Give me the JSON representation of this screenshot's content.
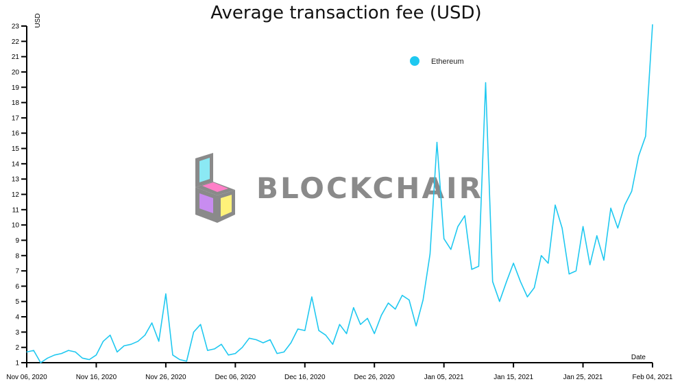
{
  "chart_data": {
    "type": "line",
    "title": "Average transaction fee (USD)",
    "ylabel": "USD",
    "xlabel": "Date",
    "ylim": [
      1,
      23
    ],
    "y_ticks": [
      1,
      2,
      3,
      4,
      5,
      6,
      7,
      8,
      9,
      10,
      11,
      12,
      13,
      14,
      15,
      16,
      17,
      18,
      19,
      20,
      21,
      22,
      23
    ],
    "x_range": [
      "2020-11-06",
      "2021-02-04"
    ],
    "x_ticks": [
      {
        "date": "2020-11-06",
        "label": "Nov 06, 2020"
      },
      {
        "date": "2020-11-16",
        "label": "Nov 16, 2020"
      },
      {
        "date": "2020-11-26",
        "label": "Nov 26, 2020"
      },
      {
        "date": "2020-12-06",
        "label": "Dec 06, 2020"
      },
      {
        "date": "2020-12-16",
        "label": "Dec 16, 2020"
      },
      {
        "date": "2020-12-26",
        "label": "Dec 26, 2020"
      },
      {
        "date": "2021-01-05",
        "label": "Jan 05, 2021"
      },
      {
        "date": "2021-01-15",
        "label": "Jan 15, 2021"
      },
      {
        "date": "2021-01-25",
        "label": "Jan 25, 2021"
      },
      {
        "date": "2021-02-04",
        "label": "Feb 04, 2021"
      }
    ],
    "legend_position": "top-right",
    "grid": false,
    "series": [
      {
        "name": "Ethereum",
        "color": "#1ec8f0",
        "x": [
          "2020-11-06",
          "2020-11-07",
          "2020-11-08",
          "2020-11-09",
          "2020-11-10",
          "2020-11-11",
          "2020-11-12",
          "2020-11-13",
          "2020-11-14",
          "2020-11-15",
          "2020-11-16",
          "2020-11-17",
          "2020-11-18",
          "2020-11-19",
          "2020-11-20",
          "2020-11-21",
          "2020-11-22",
          "2020-11-23",
          "2020-11-24",
          "2020-11-25",
          "2020-11-26",
          "2020-11-27",
          "2020-11-28",
          "2020-11-29",
          "2020-11-30",
          "2020-12-01",
          "2020-12-02",
          "2020-12-03",
          "2020-12-04",
          "2020-12-05",
          "2020-12-06",
          "2020-12-07",
          "2020-12-08",
          "2020-12-09",
          "2020-12-10",
          "2020-12-11",
          "2020-12-12",
          "2020-12-13",
          "2020-12-14",
          "2020-12-15",
          "2020-12-16",
          "2020-12-17",
          "2020-12-18",
          "2020-12-19",
          "2020-12-20",
          "2020-12-21",
          "2020-12-22",
          "2020-12-23",
          "2020-12-24",
          "2020-12-25",
          "2020-12-26",
          "2020-12-27",
          "2020-12-28",
          "2020-12-29",
          "2020-12-30",
          "2020-12-31",
          "2021-01-01",
          "2021-01-02",
          "2021-01-03",
          "2021-01-04",
          "2021-01-05",
          "2021-01-06",
          "2021-01-07",
          "2021-01-08",
          "2021-01-09",
          "2021-01-10",
          "2021-01-11",
          "2021-01-12",
          "2021-01-13",
          "2021-01-14",
          "2021-01-15",
          "2021-01-16",
          "2021-01-17",
          "2021-01-18",
          "2021-01-19",
          "2021-01-20",
          "2021-01-21",
          "2021-01-22",
          "2021-01-23",
          "2021-01-24",
          "2021-01-25",
          "2021-01-26",
          "2021-01-27",
          "2021-01-28",
          "2021-01-29",
          "2021-01-30",
          "2021-01-31",
          "2021-02-01",
          "2021-02-02",
          "2021-02-03",
          "2021-02-04"
        ],
        "values": [
          1.7,
          1.8,
          1.0,
          1.3,
          1.5,
          1.6,
          1.8,
          1.7,
          1.3,
          1.2,
          1.5,
          2.4,
          2.8,
          1.7,
          2.1,
          2.2,
          2.4,
          2.8,
          3.6,
          2.4,
          5.5,
          1.5,
          1.2,
          1.1,
          3.0,
          3.5,
          1.8,
          1.9,
          2.2,
          1.5,
          1.6,
          2.0,
          2.6,
          2.5,
          2.3,
          2.5,
          1.6,
          1.7,
          2.3,
          3.2,
          3.1,
          5.3,
          3.1,
          2.8,
          2.2,
          3.5,
          2.9,
          4.6,
          3.5,
          3.9,
          2.9,
          4.1,
          4.9,
          4.5,
          5.4,
          5.1,
          3.4,
          5.1,
          8.1,
          15.4,
          9.1,
          8.4,
          9.9,
          10.6,
          7.1,
          7.3,
          19.3,
          6.3,
          5.0,
          6.3,
          7.5,
          6.3,
          5.3,
          5.9,
          8.0,
          7.5,
          11.3,
          9.8,
          6.8,
          7.0,
          9.9,
          7.4,
          9.3,
          7.7,
          11.1,
          9.8,
          11.3,
          12.2,
          14.5,
          15.8,
          23.1
        ]
      }
    ]
  },
  "watermark": {
    "text": "BLOCKCHAIR",
    "colors": [
      "#8be9f4",
      "#ff7fc8",
      "#fff27a",
      "#c88cf0",
      "#8a8a8a"
    ]
  }
}
